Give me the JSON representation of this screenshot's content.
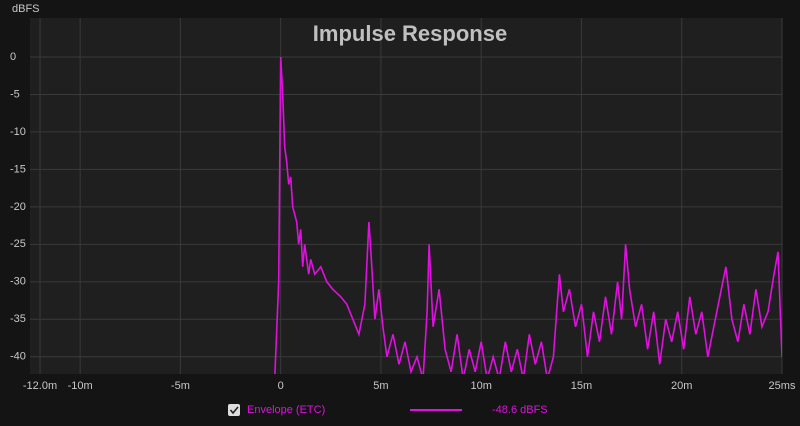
{
  "chart_data": {
    "type": "line",
    "title": "Impulse Response",
    "y_label": "dBFS",
    "x": [
      -0.3,
      -0.1,
      0,
      0.1,
      0.2,
      0.3,
      0.4,
      0.5,
      0.6,
      0.7,
      0.8,
      0.9,
      1.0,
      1.1,
      1.2,
      1.3,
      1.4,
      1.5,
      1.7,
      2.0,
      2.3,
      2.6,
      3.0,
      3.3,
      3.6,
      3.9,
      4.2,
      4.4,
      4.5,
      4.7,
      4.9,
      5.1,
      5.3,
      5.6,
      5.9,
      6.2,
      6.5,
      6.8,
      7.1,
      7.3,
      7.4,
      7.6,
      7.9,
      8.2,
      8.5,
      8.8,
      9.1,
      9.4,
      9.7,
      10.0,
      10.3,
      10.6,
      10.9,
      11.2,
      11.5,
      11.8,
      12.1,
      12.4,
      12.7,
      13.0,
      13.3,
      13.6,
      13.9,
      14.1,
      14.4,
      14.7,
      15.0,
      15.3,
      15.6,
      15.9,
      16.2,
      16.5,
      16.8,
      17.0,
      17.2,
      17.4,
      17.7,
      18.0,
      18.3,
      18.6,
      18.9,
      19.2,
      19.5,
      19.8,
      20.1,
      20.4,
      20.7,
      21.0,
      21.3,
      21.6,
      21.9,
      22.2,
      22.5,
      22.8,
      23.1,
      23.4,
      23.7,
      24.0,
      24.3,
      24.6,
      24.8,
      25.0
    ],
    "series": [
      {
        "name": "Envelope (ETC)",
        "color": "#e010e0",
        "legend_value": "-48.6 dBFS",
        "values": [
          -43,
          -30,
          0,
          -5,
          -12,
          -14,
          -17,
          -16,
          -20,
          -21,
          -22,
          -25,
          -23,
          -28,
          -25,
          -27,
          -29,
          -27,
          -29,
          -28,
          -30,
          -31,
          -32,
          -33,
          -35,
          -37,
          -33,
          -22,
          -26,
          -35,
          -31,
          -36,
          -40,
          -37,
          -41,
          -38,
          -42,
          -40,
          -43,
          -34,
          -25,
          -36,
          -31,
          -39,
          -42,
          -37,
          -43,
          -39,
          -42,
          -38,
          -43,
          -40,
          -43,
          -38,
          -42,
          -39,
          -43,
          -37,
          -41,
          -38,
          -43,
          -40,
          -29,
          -34,
          -31,
          -36,
          -33,
          -40,
          -34,
          -38,
          -32,
          -37,
          -30,
          -35,
          -25,
          -31,
          -36,
          -33,
          -39,
          -34,
          -41,
          -35,
          -38,
          -34,
          -39,
          -32,
          -37,
          -34,
          -40,
          -36,
          -32,
          -28,
          -35,
          -38,
          -33,
          -37,
          -31,
          -36,
          -34,
          -29,
          -26,
          -40
        ]
      }
    ],
    "xlim": [
      -12.5,
      25
    ],
    "ylim": [
      -42.3,
      5.2
    ],
    "xticks": [
      {
        "value": -12,
        "label": "-12.0m"
      },
      {
        "value": -10,
        "label": "-10m"
      },
      {
        "value": -5,
        "label": "-5m"
      },
      0,
      {
        "value": 5,
        "label": "5m"
      },
      {
        "value": 10,
        "label": "10m"
      },
      {
        "value": 15,
        "label": "15m"
      },
      {
        "value": 20,
        "label": "20m"
      },
      {
        "value": 25,
        "label": "25ms"
      }
    ],
    "yticks": [
      0,
      -5,
      -10,
      -15,
      -20,
      -25,
      -30,
      -35,
      -40
    ],
    "grid": true
  }
}
